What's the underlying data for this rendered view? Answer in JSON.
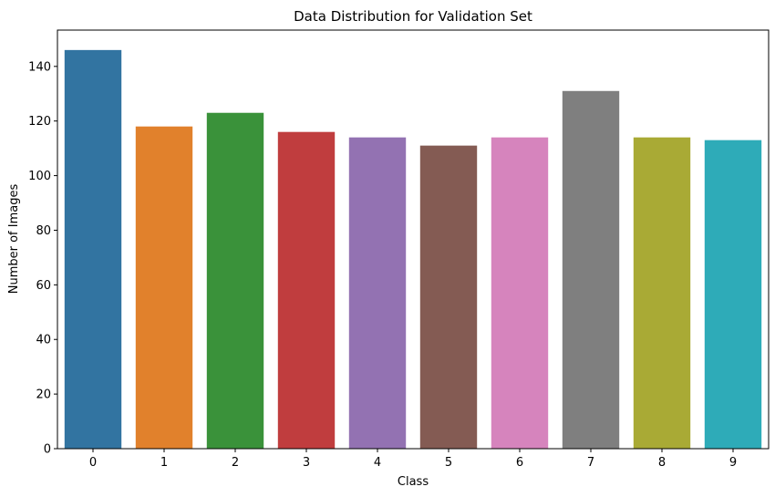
{
  "chart_data": {
    "type": "bar",
    "title": "Data Distribution for Validation Set",
    "xlabel": "Class",
    "ylabel": "Number of Images",
    "categories": [
      "0",
      "1",
      "2",
      "3",
      "4",
      "5",
      "6",
      "7",
      "8",
      "9"
    ],
    "values": [
      146,
      118,
      123,
      116,
      114,
      111,
      114,
      131,
      114,
      113
    ],
    "colors": [
      "#3274a1",
      "#e1812c",
      "#3a923a",
      "#c03d3e",
      "#9372b2",
      "#845b53",
      "#d684bd",
      "#7f7f7f",
      "#a9aa35",
      "#2eabb8"
    ],
    "ylim": [
      0,
      153.3
    ],
    "yticks": [
      0,
      20,
      40,
      60,
      80,
      100,
      120,
      140
    ],
    "grid": false,
    "legend": "none"
  }
}
